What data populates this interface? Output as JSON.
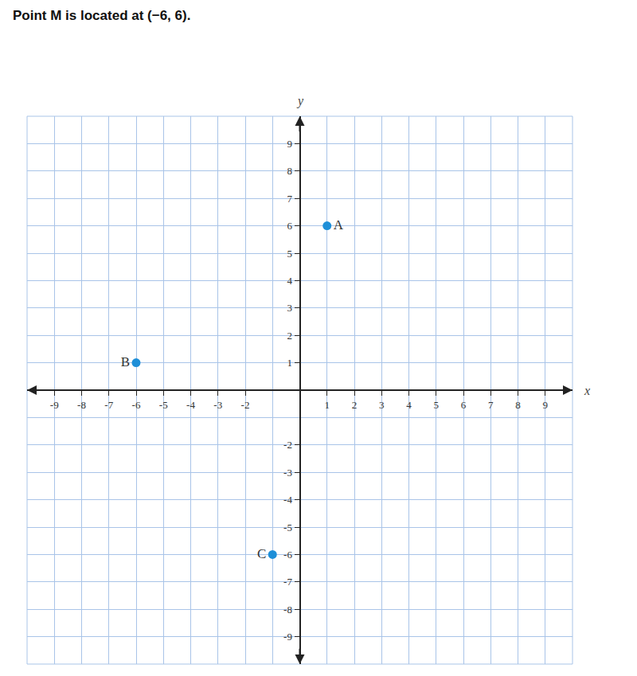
{
  "chart_data": {
    "type": "scatter",
    "title": "Point M is located at (−6, 6).",
    "x_label": "x",
    "y_label": "y",
    "x": [
      1,
      -6,
      -1
    ],
    "values": [
      6,
      1,
      -6
    ],
    "labels": [
      "A",
      "B",
      "C"
    ],
    "color": "#1e8fd8",
    "marker": "circle",
    "xlim": [
      -10,
      10
    ],
    "ylim": [
      -10,
      10
    ],
    "xticks": [
      -9,
      -8,
      -7,
      -6,
      -5,
      -4,
      -3,
      -2,
      1,
      2,
      3,
      4,
      5,
      6,
      7,
      8,
      9
    ],
    "yticks": [
      -9,
      -8,
      -7,
      -6,
      -5,
      -4,
      -3,
      -2,
      1,
      2,
      3,
      4,
      5,
      6,
      7,
      8,
      9
    ],
    "grid": true
  }
}
